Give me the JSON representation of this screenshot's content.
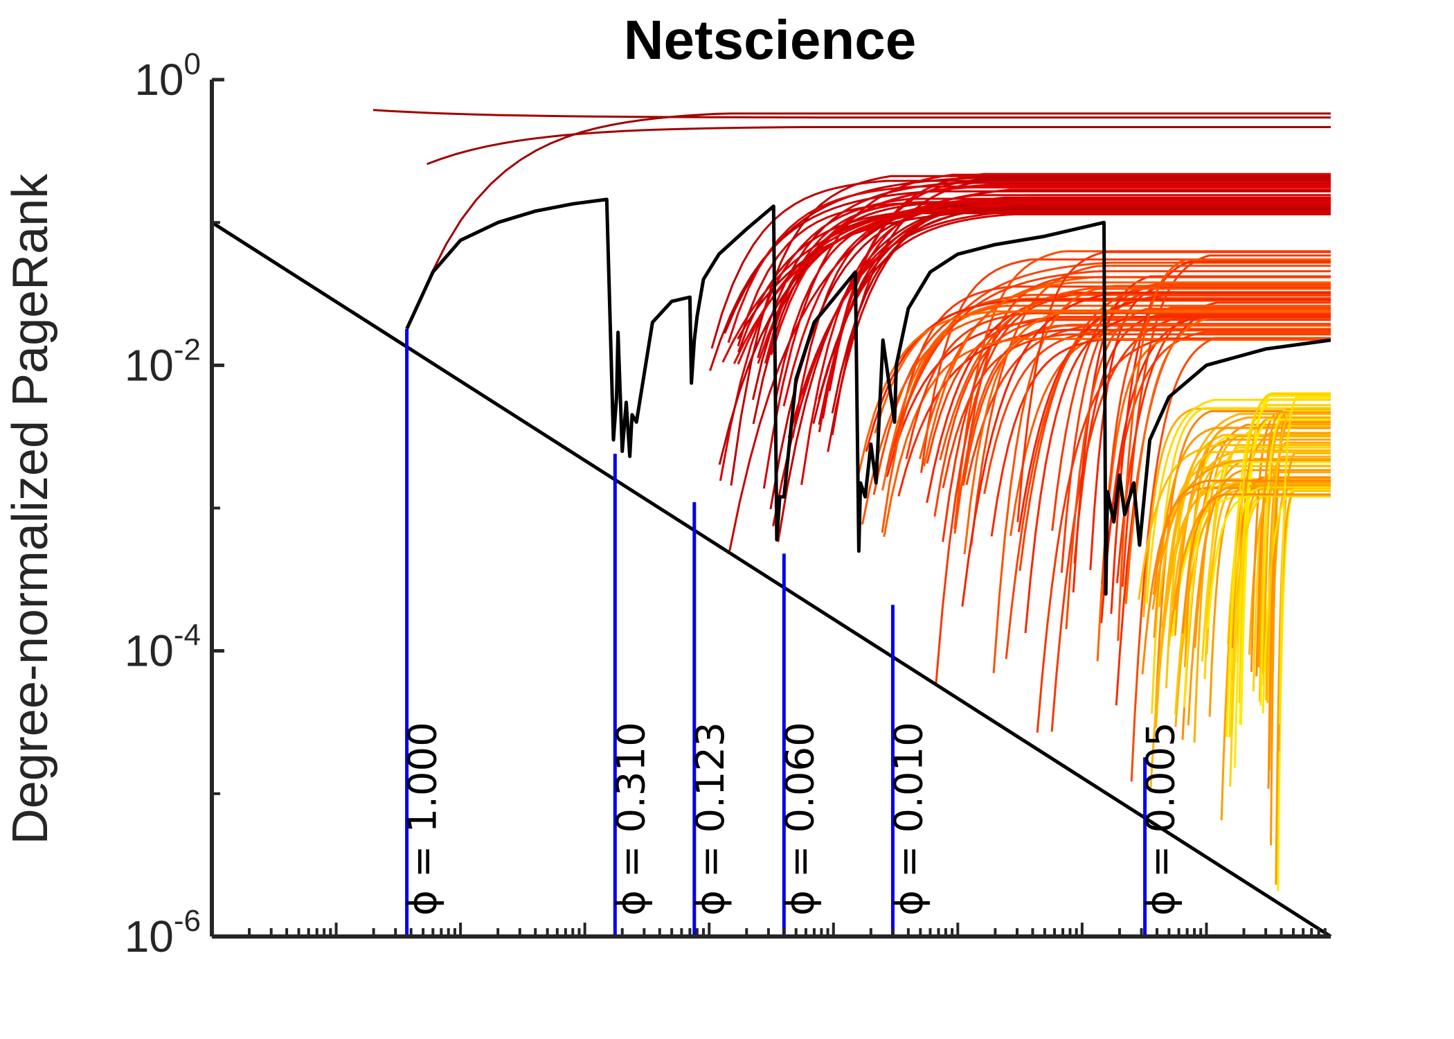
{
  "chart_data": {
    "type": "line",
    "title": "Netscience",
    "xlabel": "",
    "ylabel": "Degree-normalized PageRank",
    "yscale": "log",
    "ylim": [
      1e-06,
      1
    ],
    "yticks": [
      {
        "base": "10",
        "exp": "0",
        "value": 1
      },
      {
        "base": "10",
        "exp": "-2",
        "value": 0.01
      },
      {
        "base": "10",
        "exp": "-4",
        "value": 0.0001
      },
      {
        "base": "10",
        "exp": "-6",
        "value": 1e-06
      }
    ],
    "xscale": "log",
    "xlim": [
      1e-09,
      1
    ],
    "x_tick_labels_shown": false,
    "grid": false,
    "legend": "none",
    "colors": {
      "axis": "#262626",
      "diagonal": "#000000",
      "markers": "#0000ee",
      "curve_gradient": [
        "#9b0000",
        "#ee0000",
        "#ff5500",
        "#ffa500",
        "#ffff00"
      ]
    },
    "diagonal_line": {
      "x": [
        1e-09,
        1
      ],
      "y": [
        0.1,
        1e-06
      ]
    },
    "phi_markers": [
      {
        "label": "ϕ = 1.000",
        "phi": 1.0,
        "x": 3.7e-08,
        "y": 0.018
      },
      {
        "label": "ϕ = 0.310",
        "phi": 0.31,
        "x": 1.75e-06,
        "y": 0.0024
      },
      {
        "label": "ϕ = 0.123",
        "phi": 0.123,
        "x": 7.6e-06,
        "y": 0.0011
      },
      {
        "label": "ϕ = 0.060",
        "phi": 0.06,
        "x": 4e-05,
        "y": 0.00048
      },
      {
        "label": "ϕ = 0.010",
        "phi": 0.01,
        "x": 0.0003,
        "y": 0.00021
      },
      {
        "label": "ϕ = 0.005",
        "phi": 0.005,
        "x": 0.032,
        "y": 1.8e-05
      }
    ],
    "highlighted_path": {
      "color": "#000000",
      "x": [
        3.7e-08,
        6e-08,
        1e-07,
        2e-07,
        4e-07,
        8e-07,
        1.5e-06,
        1.7e-06,
        1.8e-06,
        1.85e-06,
        2e-06,
        2.15e-06,
        2.3e-06,
        2.4e-06,
        2.6e-06,
        3.5e-06,
        5e-06,
        7e-06,
        7.2e-06,
        7.6e-06,
        8e-06,
        9e-06,
        1.2e-05,
        2e-05,
        3.3e-05,
        3.5e-05,
        3.7e-05,
        4e-05,
        5e-05,
        7e-05,
        0.00015,
        0.00016,
        0.000165,
        0.00018,
        0.0002,
        0.00022,
        0.00025,
        0.00031,
        0.00032,
        0.0004,
        0.0006,
        0.001,
        0.002,
        0.005,
        0.015,
        0.0155,
        0.016,
        0.018,
        0.02,
        0.022,
        0.026,
        0.029,
        0.035,
        0.05,
        0.1,
        0.3,
        1
      ],
      "y": [
        0.018,
        0.045,
        0.075,
        0.1,
        0.12,
        0.135,
        0.145,
        0.003,
        0.006,
        0.017,
        0.0025,
        0.0055,
        0.0023,
        0.0045,
        0.004,
        0.02,
        0.028,
        0.03,
        0.0075,
        0.015,
        0.022,
        0.04,
        0.06,
        0.09,
        0.13,
        0.0006,
        0.0012,
        0.0012,
        0.008,
        0.02,
        0.045,
        0.0005,
        0.0015,
        0.0012,
        0.0028,
        0.0015,
        0.015,
        0.004,
        0.01,
        0.025,
        0.045,
        0.06,
        0.07,
        0.08,
        0.1,
        0.00025,
        0.0013,
        0.0008,
        0.0017,
        0.0009,
        0.0015,
        0.00055,
        0.003,
        0.006,
        0.01,
        0.013,
        0.015
      ]
    }
  }
}
